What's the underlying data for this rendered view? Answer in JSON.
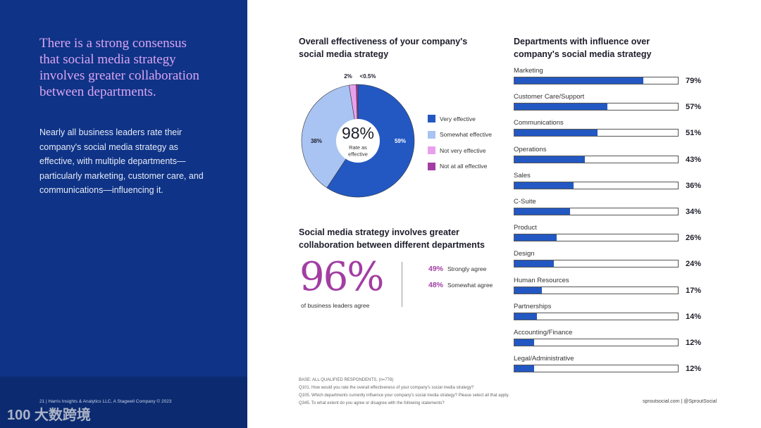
{
  "left": {
    "headline": "There is a strong consensus that social media strategy involves greater collaboration between departments.",
    "body": "Nearly all business leaders rate their company's social media strategy as effective, with multiple departments—particularly marketing, customer care, and communications—influencing it.",
    "footer": "21  |  Harris Insights & Analytics LLC, A Stagwell Company © 2023",
    "watermark": "100 大数跨境"
  },
  "chart_data": [
    {
      "type": "pie",
      "title": "Overall effectiveness of your company's social media strategy",
      "center_value": "98%",
      "center_label": "Rate as effective",
      "categories": [
        "Very effective",
        "Somewhat effective",
        "Not very effective",
        "Not at all effective"
      ],
      "values": [
        59,
        38,
        2,
        0.5
      ],
      "labels": [
        "59%",
        "38%",
        "2%",
        "<0.5%"
      ],
      "colors": [
        "#2358c3",
        "#a9c4f2",
        "#e9a0ec",
        "#a23ea3"
      ]
    },
    {
      "type": "bar",
      "orientation": "horizontal",
      "title": "Departments with influence over company's social media strategy",
      "categories": [
        "Marketing",
        "Customer Care/Support",
        "Communications",
        "Operations",
        "Sales",
        "C-Suite",
        "Product",
        "Design",
        "Human Resources",
        "Partnerships",
        "Accounting/Finance",
        "Legal/Administrative"
      ],
      "values": [
        79,
        57,
        51,
        43,
        36,
        34,
        26,
        24,
        17,
        14,
        12,
        12
      ],
      "xlim": [
        0,
        100
      ],
      "color": "#2358c3"
    }
  ],
  "collab": {
    "title": "Social media strategy involves greater collaboration between different departments",
    "big": "96%",
    "big_label": "of business leaders agree",
    "items": [
      {
        "value": "49%",
        "label": "Strongly agree"
      },
      {
        "value": "48%",
        "label": "Somewhat agree"
      }
    ]
  },
  "notes": [
    "BASE: ALL QUALIFIED RESPONDENTS, (n=778)",
    "Q101. How would you rate the overall effectiveness of your company's social media strategy?",
    "Q105. Which departments currently influence your company's social media strategy? Please select all that apply.",
    "Q345. To what extent do you agree or disagree with the following statements?"
  ],
  "site": "sproutsocial.com   |   @SproutSocial"
}
